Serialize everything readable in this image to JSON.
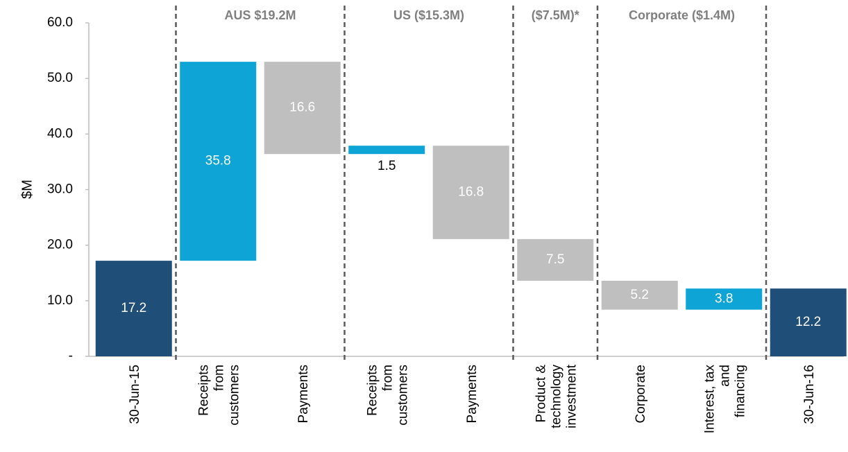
{
  "chart_data": {
    "type": "waterfall",
    "ylabel": "$M",
    "categories": [
      "30-Jun-15",
      "Receipts\nfrom\ncustomers",
      "Payments",
      "Receipts\nfrom\ncustomers",
      "Payments",
      "Product &\ntechnology\ninvestment",
      "Corporate",
      "Interest, tax\nand\nfinancing",
      "30-Jun-16"
    ],
    "values": [
      17.2,
      35.8,
      -16.6,
      1.5,
      -16.8,
      -7.5,
      -5.2,
      3.8,
      12.2
    ],
    "value_labels": [
      "17.2",
      "35.8",
      "16.6",
      "1.5",
      "16.8",
      "7.5",
      "5.2",
      "3.8",
      "12.2"
    ],
    "measure": [
      "total",
      "relative",
      "relative",
      "relative",
      "relative",
      "relative",
      "relative",
      "relative",
      "total"
    ],
    "colors": {
      "total": "#1f4e79",
      "increase": "#0ea5d6",
      "decrease": "#bfbfbf"
    },
    "groups": [
      {
        "label": "AUS $19.2M",
        "start": 1,
        "end": 2
      },
      {
        "label": "US ($15.3M)",
        "start": 3,
        "end": 4
      },
      {
        "label": "($7.5M)*",
        "start": 5,
        "end": 5
      },
      {
        "label": "Corporate ($1.4M)",
        "start": 6,
        "end": 7
      }
    ],
    "ylim": [
      0,
      60
    ],
    "yticks": [
      {
        "value": 0,
        "label": "-"
      },
      {
        "value": 10,
        "label": "10.0"
      },
      {
        "value": 20,
        "label": "20.0"
      },
      {
        "value": 30,
        "label": "30.0"
      },
      {
        "value": 40,
        "label": "40.0"
      },
      {
        "value": 50,
        "label": "50.0"
      },
      {
        "value": 60,
        "label": "60.0"
      }
    ]
  }
}
